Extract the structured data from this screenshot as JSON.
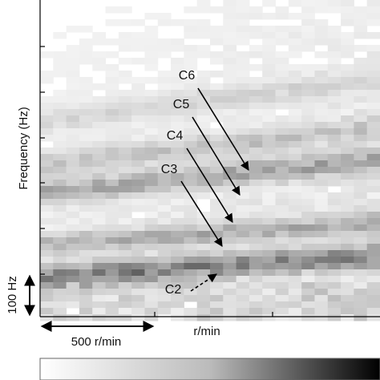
{
  "chart_data": {
    "type": "spectrogram",
    "y_label": "Frequency (Hz)",
    "x_label": "r/min",
    "annotations": [
      "C6",
      "C5",
      "C4",
      "C3",
      "C2"
    ],
    "y_scale_bar": "100 Hz",
    "x_scale_bar": "500 r/min"
  }
}
